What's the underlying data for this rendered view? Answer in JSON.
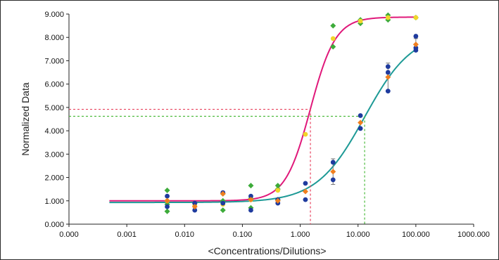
{
  "chart_data": {
    "type": "scatter",
    "xlabel": "<Concentrations/Dilutions>",
    "ylabel": "Normalized Data",
    "x_scale": "log",
    "xlim": [
      0.0001,
      1000
    ],
    "ylim": [
      0,
      9
    ],
    "x_ticks": [
      "0.000",
      "0.001",
      "0.010",
      "0.100",
      "1.000",
      "10.000",
      "100.000",
      "1000.000"
    ],
    "y_ticks": [
      "0.000",
      "1.000",
      "2.000",
      "3.000",
      "4.000",
      "5.000",
      "6.000",
      "7.000",
      "8.000",
      "9.000"
    ],
    "grid": false,
    "legend": "none",
    "curves": [
      {
        "color": "#e0187a",
        "model": "4PL",
        "bottom": 1.0,
        "top": 8.87,
        "ec50": 1.5,
        "hill": 2.0,
        "x_range": [
          0.0005,
          100
        ],
        "reference": {
          "x": 1.5,
          "y": 4.92
        }
      },
      {
        "color": "#1e9a96",
        "model": "4PL",
        "bottom": 0.93,
        "top": 8.25,
        "ec50": 13,
        "hill": 1.05,
        "x_range": [
          0.0005,
          100
        ],
        "reference": {
          "x": 13,
          "y": 4.62
        }
      }
    ],
    "series": [
      {
        "color": "#3dab3a",
        "marker": "diamond",
        "points": [
          [
            0.005,
            1.45
          ],
          [
            0.005,
            0.85
          ],
          [
            0.005,
            0.55
          ],
          [
            0.015,
            0.9
          ],
          [
            0.046,
            1.3
          ],
          [
            0.046,
            1.0
          ],
          [
            0.046,
            0.6
          ],
          [
            0.14,
            1.65
          ],
          [
            0.14,
            1.1
          ],
          [
            0.14,
            0.7
          ],
          [
            0.41,
            1.65
          ],
          [
            0.41,
            1.5
          ],
          [
            0.41,
            1.05
          ],
          [
            3.7,
            8.5
          ],
          [
            3.7,
            7.6
          ],
          [
            11,
            8.75
          ],
          [
            11,
            8.6
          ],
          [
            33,
            8.95
          ],
          [
            33,
            8.75
          ],
          [
            100,
            8.85
          ]
        ]
      },
      {
        "color": "#f1d52a",
        "marker": "circle",
        "points": [
          [
            0.005,
            1.0
          ],
          [
            0.015,
            0.8
          ],
          [
            0.046,
            0.85
          ],
          [
            0.14,
            1.05
          ],
          [
            0.41,
            1.45
          ],
          [
            1.23,
            3.85
          ],
          [
            3.7,
            7.95
          ],
          [
            11,
            8.7
          ],
          [
            33,
            8.85
          ],
          [
            100,
            8.85
          ]
        ]
      },
      {
        "color": "#1f3b9e",
        "marker": "circle",
        "points": [
          [
            0.005,
            1.2
          ],
          [
            0.005,
            0.75
          ],
          [
            0.015,
            0.9
          ],
          [
            0.015,
            0.6
          ],
          [
            0.046,
            1.35
          ],
          [
            0.046,
            0.9
          ],
          [
            0.14,
            1.2
          ],
          [
            0.14,
            0.6
          ],
          [
            0.41,
            1.05
          ],
          [
            0.41,
            0.9
          ],
          [
            1.23,
            1.75
          ],
          [
            1.23,
            1.05
          ],
          [
            3.7,
            2.65
          ],
          [
            3.7,
            1.9
          ],
          [
            11,
            4.65
          ],
          [
            11,
            4.1
          ],
          [
            33,
            6.75
          ],
          [
            33,
            6.5
          ],
          [
            33,
            5.7
          ],
          [
            100,
            8.05
          ],
          [
            100,
            7.55
          ],
          [
            100,
            7.45
          ]
        ]
      },
      {
        "color": "#f07f1f",
        "marker": "diamond",
        "points": [
          [
            0.005,
            1.0
          ],
          [
            0.015,
            0.75
          ],
          [
            0.046,
            1.3
          ],
          [
            0.14,
            1.05
          ],
          [
            0.41,
            1.0
          ],
          [
            1.23,
            1.4
          ],
          [
            3.7,
            2.25
          ],
          [
            11,
            4.35
          ],
          [
            33,
            6.3
          ],
          [
            100,
            7.7
          ]
        ]
      }
    ],
    "error_bars": [
      {
        "x": 3.7,
        "low": 1.7,
        "high": 2.8
      },
      {
        "x": 33,
        "low": 5.7,
        "high": 6.9
      },
      {
        "x": 100,
        "low": 7.45,
        "high": 7.95
      }
    ]
  }
}
